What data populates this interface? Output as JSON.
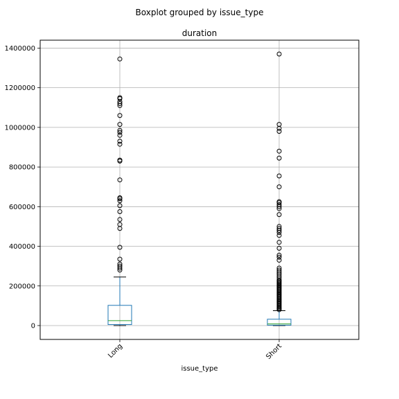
{
  "chart_data": {
    "type": "boxplot",
    "suptitle": "Boxplot grouped by issue_type",
    "title": "duration",
    "xlabel": "issue_type",
    "ylabel": "",
    "categories": [
      "Long",
      "Short"
    ],
    "ylim": [
      -70000,
      1440000
    ],
    "yticks": [
      0,
      200000,
      400000,
      600000,
      800000,
      1000000,
      1200000,
      1400000
    ],
    "ytick_labels": [
      "0",
      "200000",
      "400000",
      "600000",
      "800000",
      "1000000",
      "1200000",
      "1400000"
    ],
    "grid": true,
    "colors": {
      "box": "#1f77b4",
      "median": "#2ca02c",
      "whisker": "#1f77b4",
      "cap": "#000000",
      "flier": "#000000",
      "grid": "#b0b0b0"
    },
    "boxes": [
      {
        "name": "Long",
        "whislo": 0,
        "q1": 5000,
        "med": 25000,
        "q3": 102000,
        "whishi": 245000,
        "fliers": [
          280000,
          290000,
          300000,
          310000,
          335000,
          395000,
          490000,
          510000,
          535000,
          575000,
          605000,
          630000,
          640000,
          645000,
          735000,
          830000,
          835000,
          915000,
          930000,
          960000,
          975000,
          985000,
          1015000,
          1060000,
          1110000,
          1120000,
          1130000,
          1145000,
          1150000,
          1345000
        ]
      },
      {
        "name": "Short",
        "whislo": 0,
        "q1": 2000,
        "med": 8000,
        "q3": 32000,
        "whishi": 75000,
        "fliers": [
          80000,
          85000,
          90000,
          95000,
          100000,
          105000,
          110000,
          115000,
          120000,
          125000,
          130000,
          135000,
          140000,
          145000,
          150000,
          155000,
          160000,
          165000,
          170000,
          175000,
          180000,
          185000,
          190000,
          195000,
          200000,
          205000,
          210000,
          215000,
          220000,
          225000,
          230000,
          240000,
          250000,
          260000,
          270000,
          280000,
          290000,
          330000,
          345000,
          355000,
          390000,
          420000,
          455000,
          470000,
          480000,
          490000,
          500000,
          560000,
          590000,
          600000,
          610000,
          620000,
          625000,
          700000,
          755000,
          845000,
          880000,
          980000,
          995000,
          1015000,
          1370000
        ]
      }
    ]
  }
}
